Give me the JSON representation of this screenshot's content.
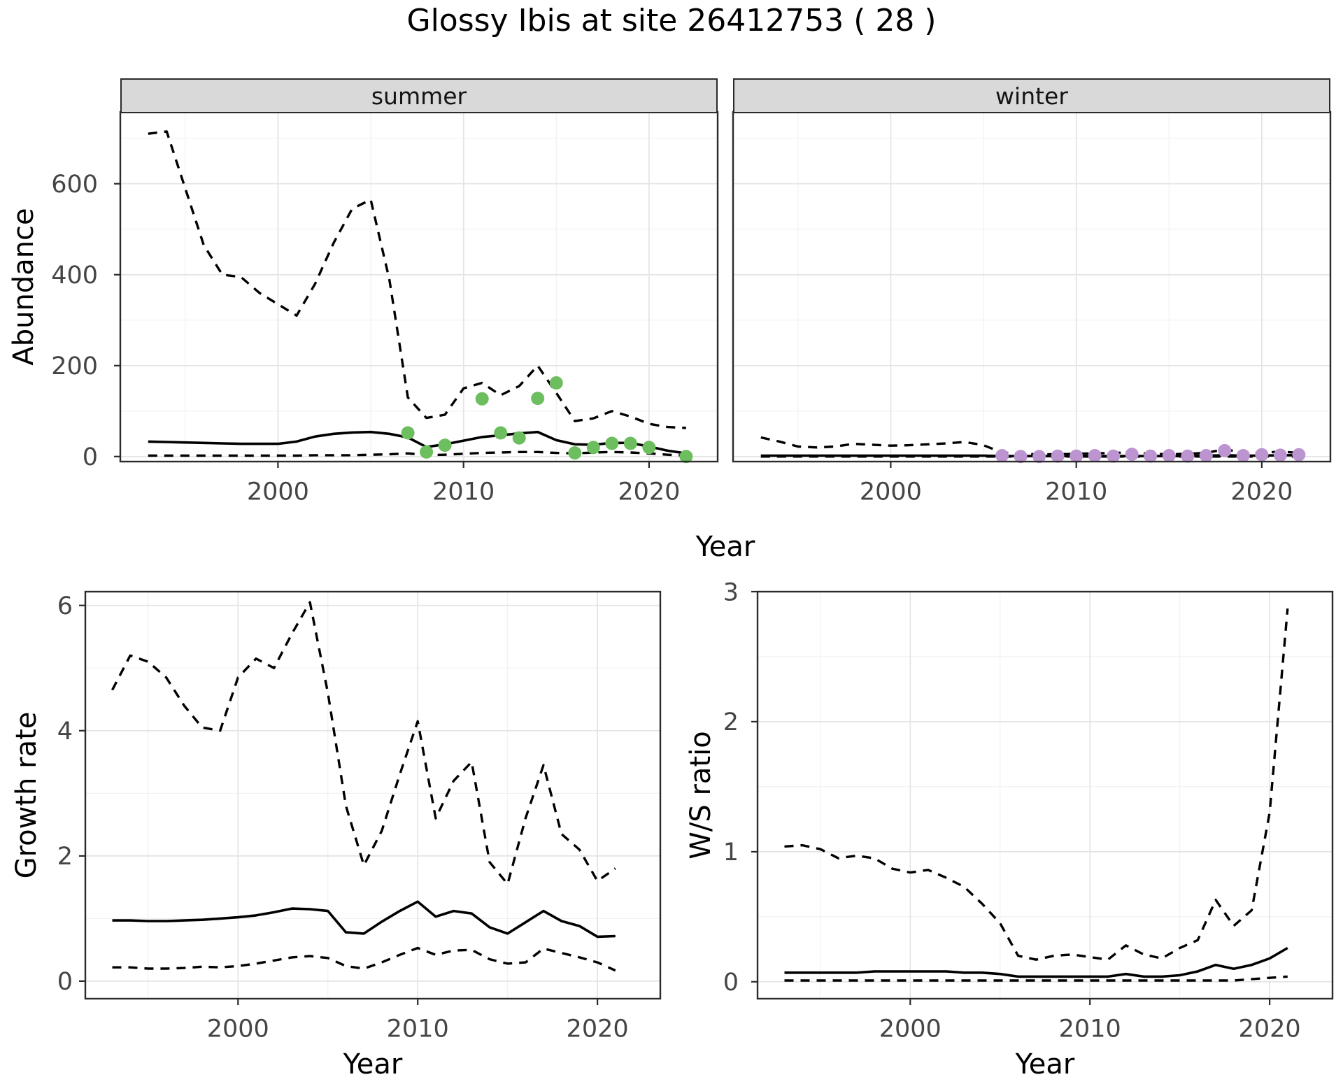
{
  "title": "Glossy Ibis at site 26412753 ( 28 )",
  "facets": {
    "summer_label": "summer",
    "winter_label": "winter"
  },
  "axis_titles": {
    "abundance": "Abundance",
    "year": "Year",
    "growth": "Growth rate",
    "ws": "W/S ratio"
  },
  "colors": {
    "summer_point": "#6cbe5e",
    "winter_point": "#bc95d0",
    "line": "#000000",
    "strip_fill": "#d9d9d9",
    "panel_border": "#2b2b2b",
    "grid_major": "#e4e4e4",
    "grid_minor": "#f1f1f1",
    "tick_label": "#454545"
  },
  "chart_data": [
    {
      "id": "abundance-summer",
      "type": "line",
      "strip_label": "summer",
      "xlabel": "Year",
      "ylabel": "Abundance",
      "xlim": [
        1991.5,
        2023.7
      ],
      "ylim": [
        -11,
        758
      ],
      "x_major": [
        2000,
        2010,
        2020
      ],
      "x_minor": [
        1995,
        2005,
        2015
      ],
      "y_major": [
        0,
        200,
        400,
        600
      ],
      "y_minor": [
        100,
        300,
        500,
        700
      ],
      "x_tick_labels": [
        "2000",
        "2010",
        "2020"
      ],
      "y_tick_labels": [
        "0",
        "200",
        "400",
        "600"
      ],
      "years": [
        1993,
        1994,
        1995,
        1996,
        1997,
        1998,
        1999,
        2000,
        2001,
        2002,
        2003,
        2004,
        2005,
        2006,
        2007,
        2008,
        2009,
        2010,
        2011,
        2012,
        2013,
        2014,
        2015,
        2016,
        2017,
        2018,
        2019,
        2020,
        2021,
        2022
      ],
      "series": [
        {
          "name": "upper-ci",
          "style": "dashed",
          "values": [
            710,
            715,
            590,
            465,
            400,
            395,
            360,
            335,
            310,
            380,
            470,
            545,
            565,
            390,
            130,
            85,
            92,
            150,
            162,
            135,
            155,
            200,
            140,
            78,
            84,
            100,
            88,
            72,
            65,
            63
          ]
        },
        {
          "name": "median",
          "style": "solid",
          "values": [
            33,
            32,
            31,
            30,
            29,
            28,
            28,
            28,
            33,
            44,
            50,
            53,
            54,
            50,
            42,
            21,
            27,
            35,
            43,
            47,
            51,
            54,
            36,
            27,
            26,
            30,
            30,
            22,
            13,
            7
          ]
        },
        {
          "name": "lower-ci",
          "style": "dashed",
          "values": [
            2,
            2,
            2,
            2,
            2,
            2,
            2,
            2,
            2,
            3,
            3,
            3,
            4,
            5,
            7,
            3,
            4,
            6,
            8,
            9,
            10,
            10,
            8,
            7,
            9,
            10,
            9,
            7,
            4,
            2
          ]
        }
      ],
      "points": {
        "name": "summer-observations",
        "color": "#6cbe5e",
        "x": [
          2007,
          2008,
          2009,
          2011,
          2012,
          2013,
          2014,
          2015,
          2016,
          2017,
          2018,
          2019,
          2020,
          2022
        ],
        "y": [
          52,
          10,
          25,
          127,
          52,
          41,
          128,
          162,
          8,
          20,
          29,
          29,
          20,
          0
        ]
      }
    },
    {
      "id": "abundance-winter",
      "type": "line",
      "strip_label": "winter",
      "xlabel": "Year",
      "ylabel": "Abundance",
      "xlim": [
        1991.5,
        2023.7
      ],
      "ylim": [
        -11,
        758
      ],
      "x_major": [
        2000,
        2010,
        2020
      ],
      "x_minor": [
        1995,
        2005,
        2015
      ],
      "y_major": [
        0,
        200,
        400,
        600
      ],
      "y_minor": [
        100,
        300,
        500,
        700
      ],
      "x_tick_labels": [
        "2000",
        "2010",
        "2020"
      ],
      "y_tick_labels": [],
      "years": [
        1993,
        1994,
        1995,
        1996,
        1997,
        1998,
        1999,
        2000,
        2001,
        2002,
        2003,
        2004,
        2005,
        2006,
        2007,
        2008,
        2009,
        2010,
        2011,
        2012,
        2013,
        2014,
        2015,
        2016,
        2017,
        2018,
        2019,
        2020,
        2021,
        2022
      ],
      "series": [
        {
          "name": "upper-ci",
          "style": "dashed",
          "values": [
            42,
            33,
            22,
            20,
            22,
            28,
            26,
            24,
            25,
            27,
            29,
            32,
            25,
            9,
            6,
            5,
            5,
            6,
            7,
            8,
            9,
            6,
            5,
            6,
            8,
            16,
            9,
            8,
            11,
            8
          ]
        },
        {
          "name": "median",
          "style": "solid",
          "values": [
            2,
            2,
            2,
            2,
            2,
            2,
            2,
            2,
            2,
            2,
            2,
            2,
            2,
            1,
            1,
            1,
            1,
            1,
            1,
            1,
            1,
            1,
            1,
            1,
            2,
            3,
            2,
            2,
            3,
            3
          ]
        },
        {
          "name": "lower-ci",
          "style": "dashed",
          "values": [
            0,
            0,
            0,
            0,
            0,
            0,
            0,
            0,
            0,
            0,
            0,
            0,
            0,
            0,
            0,
            0,
            0,
            0,
            0,
            0,
            0,
            0,
            0,
            0,
            0,
            0,
            0,
            0,
            0,
            0
          ]
        }
      ],
      "points": {
        "name": "winter-observations",
        "color": "#bc95d0",
        "x": [
          2006,
          2007,
          2008,
          2009,
          2010,
          2011,
          2012,
          2013,
          2014,
          2015,
          2016,
          2017,
          2018,
          2019,
          2020,
          2021,
          2022
        ],
        "y": [
          2,
          0,
          0,
          1,
          1,
          2,
          1,
          5,
          1,
          2,
          1,
          2,
          13,
          2,
          4,
          3,
          4
        ]
      }
    },
    {
      "id": "growth-rate",
      "type": "line",
      "strip_label": "",
      "xlabel": "Year",
      "ylabel": "Growth rate",
      "xlim": [
        1991.5,
        2023.5
      ],
      "ylim": [
        -0.28,
        6.22
      ],
      "x_major": [
        2000,
        2010,
        2020
      ],
      "x_minor": [
        1995,
        2005,
        2015
      ],
      "y_major": [
        0,
        2,
        4,
        6
      ],
      "y_minor": [
        1,
        3,
        5
      ],
      "x_tick_labels": [
        "2000",
        "2010",
        "2020"
      ],
      "y_tick_labels": [
        "0",
        "2",
        "4",
        "6"
      ],
      "years": [
        1993,
        1994,
        1995,
        1996,
        1997,
        1998,
        1999,
        2000,
        2001,
        2002,
        2003,
        2004,
        2005,
        2006,
        2007,
        2008,
        2009,
        2010,
        2011,
        2012,
        2013,
        2014,
        2015,
        2016,
        2017,
        2018,
        2019,
        2020,
        2021
      ],
      "series": [
        {
          "name": "upper-ci",
          "style": "dashed",
          "values": [
            4.65,
            5.2,
            5.1,
            4.85,
            4.4,
            4.05,
            4.0,
            4.85,
            5.15,
            5.0,
            5.55,
            6.05,
            4.6,
            2.8,
            1.85,
            2.4,
            3.3,
            4.15,
            2.6,
            3.2,
            3.5,
            1.9,
            1.55,
            2.6,
            3.45,
            2.35,
            2.1,
            1.6,
            1.8
          ]
        },
        {
          "name": "median",
          "style": "solid",
          "values": [
            0.97,
            0.97,
            0.96,
            0.96,
            0.97,
            0.98,
            1.0,
            1.02,
            1.05,
            1.1,
            1.16,
            1.15,
            1.12,
            0.78,
            0.76,
            0.95,
            1.12,
            1.27,
            1.03,
            1.12,
            1.08,
            0.86,
            0.76,
            0.94,
            1.12,
            0.96,
            0.88,
            0.71,
            0.72
          ]
        },
        {
          "name": "lower-ci",
          "style": "dashed",
          "values": [
            0.22,
            0.22,
            0.2,
            0.2,
            0.21,
            0.23,
            0.22,
            0.24,
            0.28,
            0.33,
            0.38,
            0.4,
            0.37,
            0.24,
            0.2,
            0.3,
            0.42,
            0.53,
            0.42,
            0.49,
            0.5,
            0.35,
            0.28,
            0.3,
            0.52,
            0.45,
            0.38,
            0.3,
            0.17
          ]
        }
      ],
      "points": null
    },
    {
      "id": "ws-ratio",
      "type": "line",
      "strip_label": "",
      "xlabel": "Year",
      "ylabel": "W/S ratio",
      "xlim": [
        1991.5,
        2023.5
      ],
      "ylim": [
        -0.13,
        3.0
      ],
      "x_major": [
        2000,
        2010,
        2020
      ],
      "x_minor": [
        1995,
        2005,
        2015
      ],
      "y_major": [
        0,
        1,
        2,
        3
      ],
      "y_minor": [
        0.5,
        1.5,
        2.5
      ],
      "x_tick_labels": [
        "2000",
        "2010",
        "2020"
      ],
      "y_tick_labels": [
        "0",
        "1",
        "2",
        "3"
      ],
      "years": [
        1993,
        1994,
        1995,
        1996,
        1997,
        1998,
        1999,
        2000,
        2001,
        2002,
        2003,
        2004,
        2005,
        2006,
        2007,
        2008,
        2009,
        2010,
        2011,
        2012,
        2013,
        2014,
        2015,
        2016,
        2017,
        2018,
        2019,
        2020,
        2021
      ],
      "series": [
        {
          "name": "upper-ci",
          "style": "dashed",
          "values": [
            1.04,
            1.05,
            1.02,
            0.95,
            0.97,
            0.95,
            0.87,
            0.84,
            0.86,
            0.8,
            0.73,
            0.6,
            0.45,
            0.2,
            0.17,
            0.2,
            0.21,
            0.19,
            0.17,
            0.28,
            0.21,
            0.18,
            0.26,
            0.32,
            0.63,
            0.43,
            0.55,
            1.3,
            2.87
          ]
        },
        {
          "name": "median",
          "style": "solid",
          "values": [
            0.07,
            0.07,
            0.07,
            0.07,
            0.07,
            0.08,
            0.08,
            0.08,
            0.08,
            0.08,
            0.07,
            0.07,
            0.06,
            0.04,
            0.04,
            0.04,
            0.04,
            0.04,
            0.04,
            0.06,
            0.04,
            0.04,
            0.05,
            0.08,
            0.13,
            0.1,
            0.13,
            0.18,
            0.26
          ]
        },
        {
          "name": "lower-ci",
          "style": "dashed",
          "values": [
            0.01,
            0.01,
            0.01,
            0.01,
            0.01,
            0.01,
            0.01,
            0.01,
            0.01,
            0.01,
            0.01,
            0.01,
            0.01,
            0.01,
            0.01,
            0.01,
            0.01,
            0.01,
            0.01,
            0.01,
            0.01,
            0.01,
            0.01,
            0.01,
            0.01,
            0.01,
            0.02,
            0.03,
            0.04
          ]
        }
      ],
      "points": null
    }
  ]
}
